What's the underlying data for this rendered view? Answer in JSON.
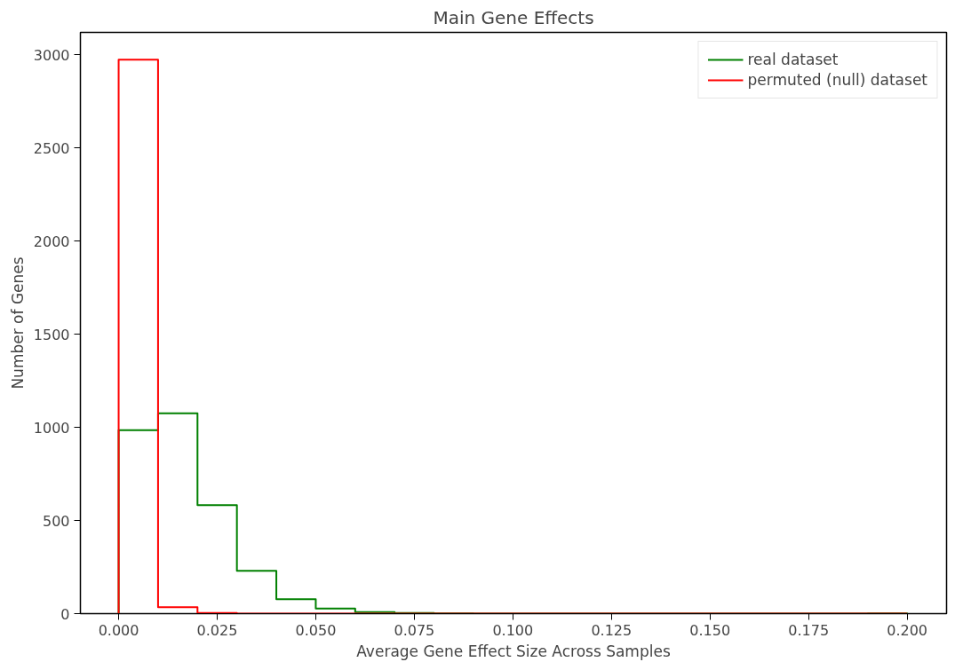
{
  "chart_data": {
    "type": "histogram",
    "title": "Main Gene Effects",
    "xlabel": "Average Gene Effect Size Across Samples",
    "ylabel": "Number of Genes",
    "bins": [
      0,
      0.01,
      0.02,
      0.03,
      0.04,
      0.05,
      0.06,
      0.07,
      0.08,
      0.09,
      0.1,
      0.11,
      0.12,
      0.13,
      0.14,
      0.15,
      0.16,
      0.17,
      0.18,
      0.19,
      0.2
    ],
    "series": [
      {
        "name": "real dataset",
        "color": "#008000",
        "values": [
          985,
          1075,
          582,
          230,
          77,
          27,
          8,
          3,
          1,
          0,
          0,
          0,
          0,
          0,
          0,
          0,
          0,
          0,
          0,
          1
        ]
      },
      {
        "name": "permuted (null) dataset",
        "color": "#ff0000",
        "values": [
          2974,
          34,
          3,
          0,
          0,
          0,
          0,
          0,
          0,
          0,
          0,
          0,
          0,
          0,
          0,
          0,
          0,
          0,
          0,
          0
        ]
      }
    ],
    "xlim": [
      -0.0097,
      0.21
    ],
    "ylim": [
      0,
      3120
    ],
    "xticks": [
      {
        "value": 0,
        "label": "0.000"
      },
      {
        "value": 0.025,
        "label": "0.025"
      },
      {
        "value": 0.05,
        "label": "0.050"
      },
      {
        "value": 0.075,
        "label": "0.075"
      },
      {
        "value": 0.1,
        "label": "0.100"
      },
      {
        "value": 0.125,
        "label": "0.125"
      },
      {
        "value": 0.15,
        "label": "0.150"
      },
      {
        "value": 0.175,
        "label": "0.175"
      },
      {
        "value": 0.2,
        "label": "0.200"
      }
    ],
    "yticks": [
      0,
      500,
      1000,
      1500,
      2000,
      2500,
      3000
    ],
    "grid": false,
    "legend": "top right",
    "line_style": "solid"
  }
}
